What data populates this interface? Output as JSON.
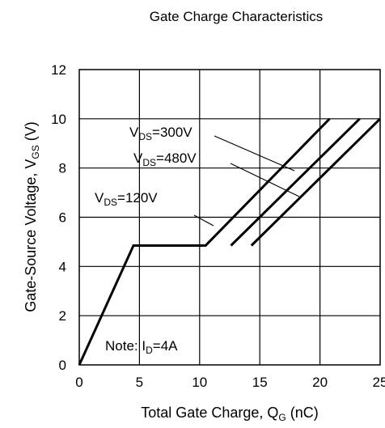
{
  "chart_data": {
    "type": "line",
    "title": "Gate Charge Characteristics",
    "xlabel": {
      "main": "Total Gate Charge, Q",
      "sub": "G",
      "suffix": " (nC)"
    },
    "ylabel": {
      "main": "Gate-Source Voltage, V",
      "sub": "GS",
      "suffix": " (V)"
    },
    "xlim": [
      0,
      25
    ],
    "ylim": [
      0,
      12
    ],
    "xticks": [
      0,
      5,
      10,
      15,
      20,
      25
    ],
    "yticks": [
      0,
      2,
      4,
      6,
      8,
      10,
      12
    ],
    "grid": true,
    "series": [
      {
        "name": "VDS=120V",
        "points": [
          [
            0,
            0
          ],
          [
            4.5,
            4.85
          ],
          [
            10.5,
            4.85
          ],
          [
            20.8,
            10
          ]
        ]
      },
      {
        "name": "VDS=300V",
        "points": [
          [
            12.6,
            4.85
          ],
          [
            23.3,
            10
          ]
        ]
      },
      {
        "name": "VDS=480V",
        "points": [
          [
            14.3,
            4.85
          ],
          [
            25,
            10
          ]
        ]
      }
    ],
    "annotations": [
      {
        "text": {
          "pre": "V",
          "sub": "DS",
          "post": "=300V"
        }
      },
      {
        "text": {
          "pre": "V",
          "sub": "DS",
          "post": "=480V"
        }
      },
      {
        "text": {
          "pre": "V",
          "sub": "DS",
          "post": "=120V"
        }
      },
      {
        "text": {
          "pre": "Note: I",
          "sub": "D",
          "post": "=4A"
        }
      }
    ],
    "line_color": "#000000"
  }
}
